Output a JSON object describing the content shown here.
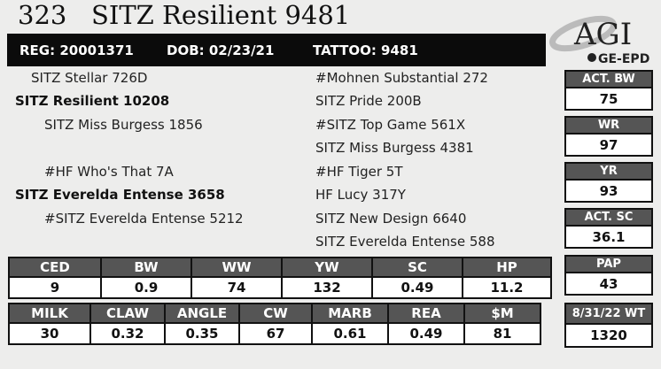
{
  "title": "323   SITZ Resilient 9481",
  "id_bar": {
    "reg": "REG: 20001371",
    "dob": "DOB: 02/23/21",
    "tattoo": "TATTOO: 9481"
  },
  "logo": {
    "mark": "AGI",
    "sub": "GE-EPD"
  },
  "pedigree": {
    "sire_side": [
      "SITZ Stellar 726D",
      "SITZ Resilient 10208",
      "SITZ Miss Burgess 1856"
    ],
    "dam_side": [
      "#HF Who's That 7A",
      "SITZ Everelda Entense 3658",
      "#SITZ Everelda Entense 5212"
    ],
    "ancestors": [
      "#Mohnen Substantial 272",
      "SITZ Pride 200B",
      "#SITZ Top Game 561X",
      "SITZ Miss Burgess 4381",
      "#HF Tiger 5T",
      "HF Lucy 317Y",
      "SITZ New Design 6640",
      "SITZ Everelda Entense 588"
    ]
  },
  "side_stats": [
    {
      "label": "ACT. BW",
      "value": "75"
    },
    {
      "label": "WR",
      "value": "97"
    },
    {
      "label": "YR",
      "value": "93"
    },
    {
      "label": "ACT. SC",
      "value": "36.1"
    },
    {
      "label": "PAP",
      "value": "43"
    },
    {
      "label": "8/31/22 WT",
      "value": "1320"
    }
  ],
  "epd_row1": {
    "headers": [
      "CED",
      "BW",
      "WW",
      "YW",
      "SC",
      "HP"
    ],
    "values": [
      "9",
      "0.9",
      "74",
      "132",
      "0.49",
      "11.2"
    ]
  },
  "epd_row2": {
    "headers": [
      "MILK",
      "CLAW",
      "ANGLE",
      "CW",
      "MARB",
      "REA",
      "$M"
    ],
    "values": [
      "30",
      "0.32",
      "0.35",
      "67",
      "0.61",
      "0.49",
      "81"
    ]
  }
}
